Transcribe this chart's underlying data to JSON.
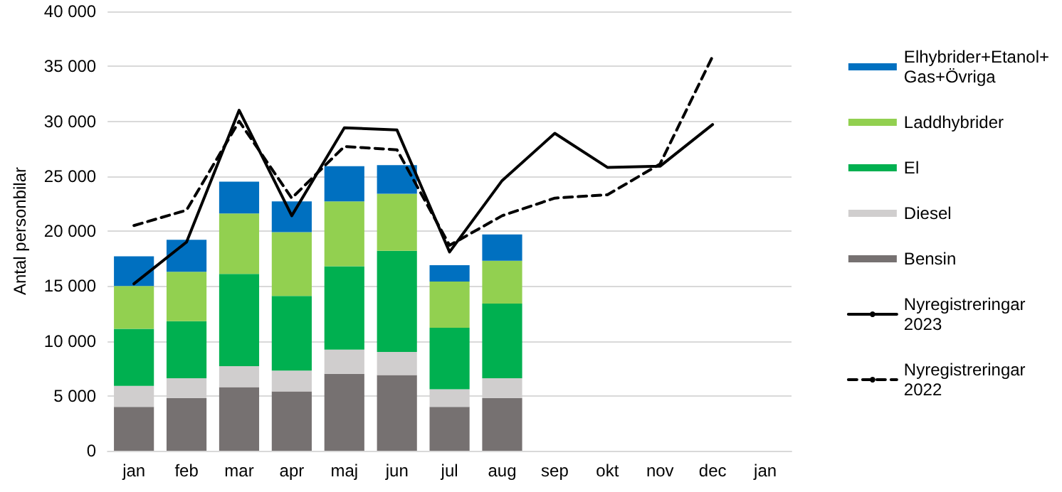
{
  "chart_data": {
    "type": "bar",
    "stacked": true,
    "ylabel": "Antal personbilar",
    "categories": [
      "jan",
      "feb",
      "mar",
      "apr",
      "maj",
      "jun",
      "jul",
      "aug",
      "sep",
      "okt",
      "nov",
      "dec",
      "jan"
    ],
    "series": [
      {
        "name": "Bensin",
        "color": "#767171",
        "values": [
          4000,
          4800,
          5800,
          5400,
          7000,
          6900,
          4000,
          4800,
          null,
          null,
          null,
          null,
          null
        ]
      },
      {
        "name": "Diesel",
        "color": "#d0cece",
        "values": [
          1900,
          1800,
          1900,
          1900,
          2200,
          2100,
          1600,
          1800,
          null,
          null,
          null,
          null,
          null
        ]
      },
      {
        "name": "El",
        "color": "#00b050",
        "values": [
          5200,
          5200,
          8400,
          6800,
          7600,
          9200,
          5600,
          6800,
          null,
          null,
          null,
          null,
          null
        ]
      },
      {
        "name": "Laddhybrider",
        "color": "#92d050",
        "values": [
          3900,
          4500,
          5500,
          5800,
          5900,
          5200,
          4200,
          3900,
          null,
          null,
          null,
          null,
          null
        ]
      },
      {
        "name": "Elhybrider+Etanol+Gas+Övriga",
        "color": "#0070c0",
        "values": [
          2700,
          2900,
          2900,
          2800,
          3200,
          2600,
          1500,
          2400,
          null,
          null,
          null,
          null,
          null
        ]
      },
      {
        "name": "Nyregistreringar 2023",
        "type": "line",
        "color": "#000000",
        "line_style": "solid",
        "values": [
          15200,
          19000,
          31000,
          21400,
          29400,
          29200,
          18100,
          24600,
          28900,
          25800,
          25900,
          29700,
          null
        ]
      },
      {
        "name": "Nyregistreringar 2022",
        "type": "line",
        "color": "#000000",
        "line_style": "dashed",
        "values": [
          20500,
          21900,
          30000,
          23000,
          27700,
          27400,
          18700,
          21400,
          23000,
          23300,
          26100,
          35900,
          null
        ]
      }
    ],
    "ylim": [
      0,
      40000
    ],
    "yticks": [
      {
        "value": 0,
        "label": "0"
      },
      {
        "value": 5000,
        "label": "5 000"
      },
      {
        "value": 10000,
        "label": "10 000"
      },
      {
        "value": 15000,
        "label": "15 000"
      },
      {
        "value": 20000,
        "label": "20 000"
      },
      {
        "value": 25000,
        "label": "25 000"
      },
      {
        "value": 30000,
        "label": "30 000"
      },
      {
        "value": 35000,
        "label": "35 000"
      },
      {
        "value": 40000,
        "label": "40 000"
      }
    ],
    "grid": "y",
    "legend": "right",
    "marker": "none"
  }
}
